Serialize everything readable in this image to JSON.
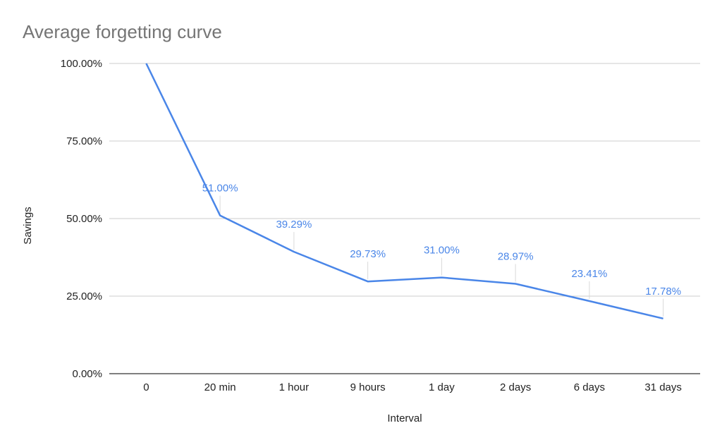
{
  "chart_data": {
    "type": "line",
    "title": "Average forgetting curve",
    "xlabel": "Interval",
    "ylabel": "Savings",
    "categories": [
      "0",
      "20 min",
      "1 hour",
      "9 hours",
      "1 day",
      "2 days",
      "6 days",
      "31 days"
    ],
    "series": [
      {
        "values": [
          100,
          51.0,
          39.29,
          29.73,
          31.0,
          28.97,
          23.41,
          17.78
        ],
        "data_labels": [
          "",
          "51.00%",
          "39.29%",
          "29.73%",
          "31.00%",
          "28.97%",
          "23.41%",
          "17.78%"
        ],
        "color": "#4a86e8"
      }
    ],
    "ylim": [
      0,
      100
    ],
    "yticks": [
      "0.00%",
      "25.00%",
      "50.00%",
      "75.00%",
      "100.00%"
    ],
    "ytick_values": [
      0,
      25,
      50,
      75,
      100
    ],
    "grid": true,
    "legend": "none",
    "colors": {
      "line": "#4a86e8",
      "grid": "#cccccc",
      "axis": "#333333",
      "title": "#757575"
    }
  }
}
